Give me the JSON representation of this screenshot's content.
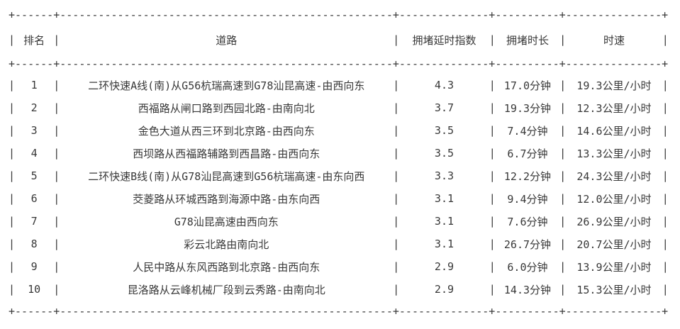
{
  "page": {
    "background_color": "#ffffff",
    "text_color": "#383838"
  },
  "ascii_glyphs": {
    "pipe": "|",
    "dash": "-",
    "cross": "+"
  },
  "table": {
    "columns": [
      {
        "key": "rank",
        "label": "排名"
      },
      {
        "key": "road",
        "label": "道路"
      },
      {
        "key": "delay_index",
        "label": "拥堵延时指数"
      },
      {
        "key": "duration",
        "label": "拥堵时长"
      },
      {
        "key": "speed",
        "label": "时速"
      }
    ],
    "rows": [
      {
        "rank": "1",
        "road": "二环快速A线(南)从G56杭瑞高速到G78汕昆高速-由西向东",
        "delay_index": "4.3",
        "duration": "17.0分钟",
        "speed": "19.3公里/小时"
      },
      {
        "rank": "2",
        "road": "西福路从闸口路到西园北路-由南向北",
        "delay_index": "3.7",
        "duration": "19.3分钟",
        "speed": "12.3公里/小时"
      },
      {
        "rank": "3",
        "road": "金色大道从西三环到北京路-由西向东",
        "delay_index": "3.5",
        "duration": "7.4分钟",
        "speed": "14.6公里/小时"
      },
      {
        "rank": "4",
        "road": "西坝路从西福路辅路到西昌路-由西向东",
        "delay_index": "3.5",
        "duration": "6.7分钟",
        "speed": "13.3公里/小时"
      },
      {
        "rank": "5",
        "road": "二环快速B线(南)从G78汕昆高速到G56杭瑞高速-由东向西",
        "delay_index": "3.3",
        "duration": "12.2分钟",
        "speed": "24.3公里/小时"
      },
      {
        "rank": "6",
        "road": "茭菱路从环城西路到海源中路-由东向西",
        "delay_index": "3.1",
        "duration": "9.4分钟",
        "speed": "12.0公里/小时"
      },
      {
        "rank": "7",
        "road": "G78汕昆高速由西向东",
        "delay_index": "3.1",
        "duration": "7.6分钟",
        "speed": "26.9公里/小时"
      },
      {
        "rank": "8",
        "road": "彩云北路由南向北",
        "delay_index": "3.1",
        "duration": "26.7分钟",
        "speed": "20.7公里/小时"
      },
      {
        "rank": "9",
        "road": "人民中路从东风西路到北京路-由西向东",
        "delay_index": "2.9",
        "duration": "6.0分钟",
        "speed": "13.9公里/小时"
      },
      {
        "rank": "10",
        "road": "昆洛路从云峰机械厂段到云秀路-由南向北",
        "delay_index": "2.9",
        "duration": "14.3分钟",
        "speed": "15.3公里/小时"
      }
    ]
  }
}
